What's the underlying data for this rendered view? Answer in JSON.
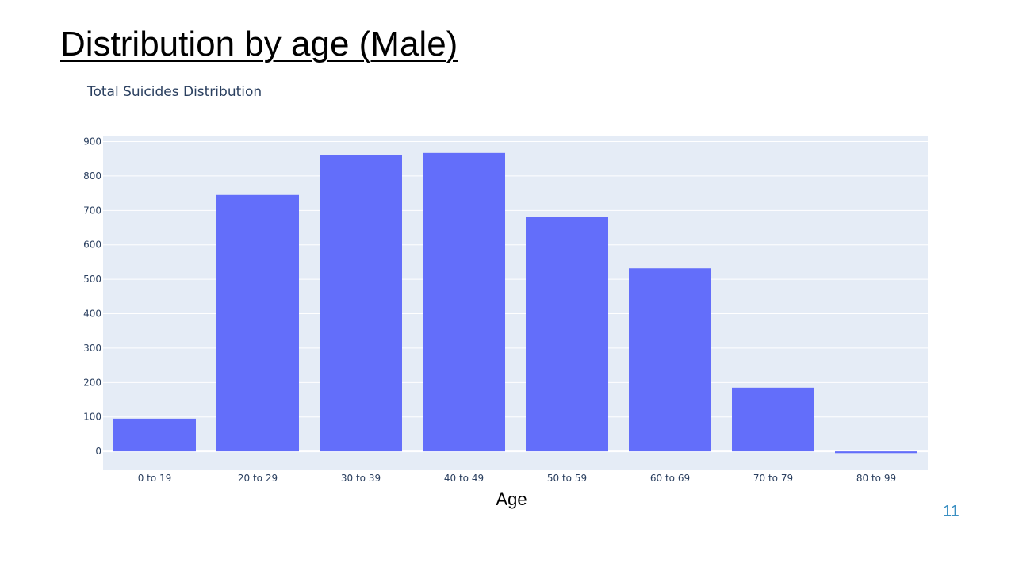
{
  "slide": {
    "title": "Distribution by age (Male)",
    "page_number": "11"
  },
  "chart_data": {
    "type": "bar",
    "title": "Total Suicides Distribution",
    "xlabel": "Age",
    "ylabel": "",
    "categories": [
      "0 to 19",
      "20 to 29",
      "30 to 39",
      "40 to 49",
      "50 to 59",
      "60 to 69",
      "70 to 79",
      "80 to 99"
    ],
    "values": [
      95,
      745,
      862,
      867,
      680,
      532,
      185,
      -5
    ],
    "ylim": [
      -55,
      915
    ],
    "yticks": [
      0,
      100,
      200,
      300,
      400,
      500,
      600,
      700,
      800,
      900
    ],
    "grid": true,
    "bar_color": "#636efa",
    "plot_background": "#e5ecf6",
    "grid_color": "#ffffff"
  }
}
